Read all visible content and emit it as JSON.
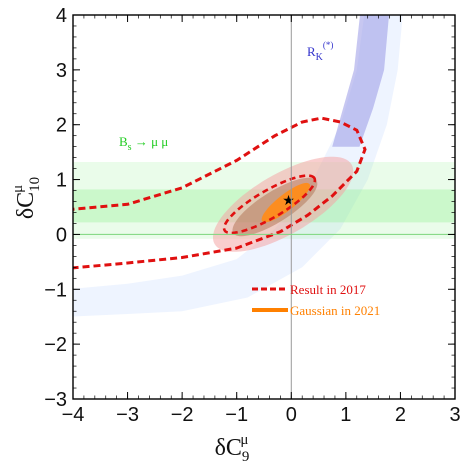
{
  "chart_data": {
    "type": "contour",
    "xlabel": "δC",
    "xlabel_sup": "μ",
    "xlabel_sub": "9",
    "ylabel": "δC",
    "ylabel_sup": "μ",
    "ylabel_sub": "10",
    "xlim": [
      -4,
      3
    ],
    "ylim": [
      -3,
      4
    ],
    "xticks": [
      "−4",
      "−3",
      "−2",
      "−1",
      "0",
      "1",
      "2",
      "3"
    ],
    "xtick_values": [
      -4,
      -3,
      -2,
      -1,
      0,
      1,
      2,
      3
    ],
    "yticks": [
      "−3",
      "−2",
      "−1",
      "0",
      "1",
      "2",
      "3",
      "4"
    ],
    "ytick_values": [
      -3,
      -2,
      -1,
      0,
      1,
      2,
      3,
      4
    ],
    "best_fit": {
      "x": -0.05,
      "y": 0.63,
      "marker": "★"
    },
    "bands": {
      "Bs_mumu": {
        "label_main": "B",
        "label_sub": "s",
        "label_rest": " → μ μ",
        "color": "#33dd33",
        "inner_y": [
          0.22,
          0.82
        ],
        "outer_y": [
          -0.08,
          1.32
        ]
      },
      "RK": {
        "label_main": "R",
        "label_sub": "K",
        "label_sup": "(*)",
        "color": "#3333cc"
      }
    },
    "regions": {
      "pink_contour": {
        "color": "#f5b5b5",
        "x": [
          -1.25,
          1.1
        ],
        "y": [
          -0.3,
          1.5
        ]
      },
      "result_2017_inner": {
        "color": "#e01010",
        "x": [
          -1.2,
          0.45
        ],
        "y": [
          0.12,
          1.0
        ]
      },
      "result_2017_outer": {
        "color": "#e01010",
        "x": [
          -4,
          1.4
        ],
        "y": [
          -0.6,
          2.1
        ]
      },
      "gaussian_2021": {
        "color": "#ff8000",
        "center": [
          -0.05,
          0.63
        ]
      }
    },
    "legend": [
      {
        "label": "Result in 2017",
        "color": "#e01010",
        "style": "dashed"
      },
      {
        "label": "Gaussian in 2021",
        "color": "#ff8000",
        "style": "solid"
      }
    ]
  }
}
